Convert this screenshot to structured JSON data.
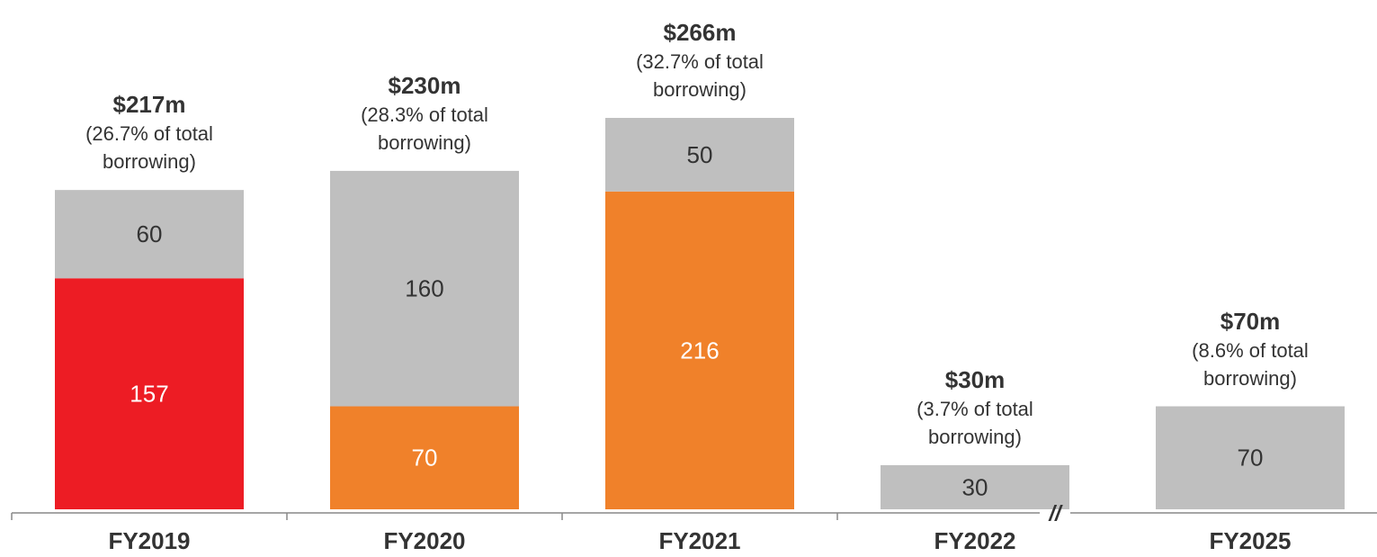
{
  "chart_data": {
    "type": "stacked_bar",
    "categories": [
      "FY2019",
      "FY2020",
      "FY2021",
      "FY2022",
      "FY2025"
    ],
    "series": [
      {
        "colors": [
          "#ed1c24",
          "#f0812a",
          "#f0812a",
          null,
          null
        ],
        "label_color": "#ffffff",
        "values": [
          157,
          70,
          216,
          null,
          null
        ]
      },
      {
        "color": "#bfbfbf",
        "label_color": "#333333",
        "values": [
          60,
          160,
          50,
          30,
          70
        ]
      }
    ],
    "annotations": [
      {
        "total": "$217m",
        "note": "(26.7% of total borrowing)"
      },
      {
        "total": "$230m",
        "note": "(28.3% of total borrowing)"
      },
      {
        "total": "$266m",
        "note": "(32.7% of total borrowing)"
      },
      {
        "total": "$30m",
        "note": "(3.7% of total borrowing)"
      },
      {
        "total": "$70m",
        "note": "(8.6% of total borrowing)"
      }
    ],
    "axis_break": "//",
    "ylim": [
      0,
      340
    ]
  }
}
